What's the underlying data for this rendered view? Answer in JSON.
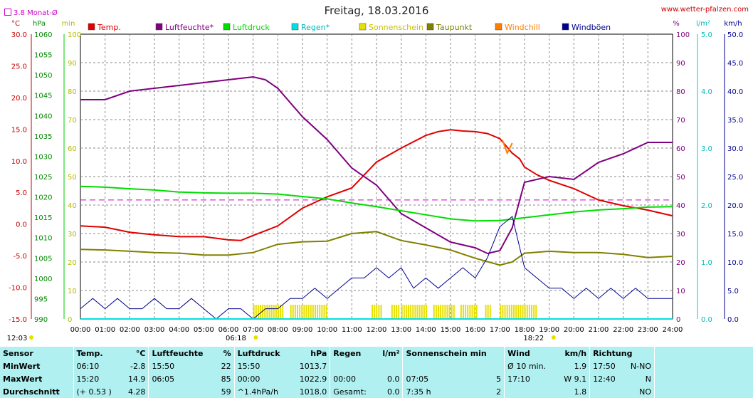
{
  "header": {
    "title": "Freitag, 18.03.2016",
    "site": "www.wetter-pfalzen.com",
    "avg_label": "3.8 Monat-Ø"
  },
  "axes": {
    "left_units": [
      "°C",
      "hPa",
      "min"
    ],
    "right_units": [
      "%",
      "l/m²",
      "km/h"
    ],
    "temp_ticks": [
      "30.0",
      "25.0",
      "20.0",
      "15.0",
      "10.0",
      "5.0",
      "0.0",
      "-5.0",
      "-10.0",
      "-15.0"
    ],
    "hpa_ticks": [
      "1060",
      "1055",
      "1050",
      "1045",
      "1040",
      "1035",
      "1030",
      "1025",
      "1020",
      "1015",
      "1010",
      "1005",
      "1000",
      "995",
      "990"
    ],
    "min_ticks": [
      "100",
      "90",
      "80",
      "70",
      "60",
      "50",
      "40",
      "30",
      "20",
      "10",
      "0"
    ],
    "pct_ticks": [
      "100",
      "90",
      "80",
      "70",
      "60",
      "50",
      "40",
      "30",
      "20",
      "10",
      "0"
    ],
    "rain_ticks": [
      "5.0",
      "4.0",
      "3.0",
      "2.0",
      "1.0",
      "0.0"
    ],
    "wind_ticks": [
      "50.0",
      "45.0",
      "40.0",
      "35.0",
      "30.0",
      "25.0",
      "20.0",
      "15.0",
      "10.0",
      "5.0",
      "0.0"
    ],
    "time_ticks": [
      "00:00",
      "01:00",
      "02:00",
      "03:00",
      "04:00",
      "05:00",
      "06:00",
      "07:00",
      "08:00",
      "09:00",
      "10:00",
      "11:00",
      "12:00",
      "13:00",
      "14:00",
      "15:00",
      "16:00",
      "17:00",
      "18:00",
      "19:00",
      "20:00",
      "21:00",
      "22:00",
      "23:00",
      "24:00"
    ],
    "sunrise": "06:18",
    "sunset": "18:22",
    "moon": "12:03"
  },
  "chart_data": {
    "type": "line",
    "title": "Freitag, 18.03.2016",
    "x_unit": "hours",
    "x_range": [
      0,
      24
    ],
    "month_avg_temp": 3.8,
    "legend": [
      {
        "name": "Temp.",
        "color": "#e00000"
      },
      {
        "name": "Luftfeuchte*",
        "color": "#800080"
      },
      {
        "name": "Luftdruck",
        "color": "#00dd00"
      },
      {
        "name": "Regen*",
        "color": "#00e0e0"
      },
      {
        "name": "Sonnenschein",
        "color": "#e8e000"
      },
      {
        "name": "Taupunkt",
        "color": "#808000"
      },
      {
        "name": "Windchill",
        "color": "#ff8000"
      },
      {
        "name": "Windböen",
        "color": "#000090"
      }
    ],
    "series": [
      {
        "name": "Temp.",
        "unit": "°C",
        "range": [
          -15,
          30
        ],
        "color": "#e00000",
        "x": [
          0,
          1,
          2,
          3,
          4,
          5,
          6,
          6.5,
          7,
          8,
          9,
          10,
          11,
          12,
          13,
          14,
          14.5,
          15,
          15.5,
          16,
          16.5,
          17,
          17.5,
          17.8,
          18,
          18.5,
          19,
          20,
          21,
          22,
          23,
          24
        ],
        "y": [
          -0.3,
          -0.5,
          -1.3,
          -1.7,
          -2.0,
          -2.0,
          -2.5,
          -2.6,
          -1.8,
          -0.3,
          2.5,
          4.3,
          5.7,
          9.8,
          12.0,
          14.0,
          14.6,
          14.9,
          14.7,
          14.6,
          14.3,
          13.5,
          11.2,
          10.3,
          9.0,
          7.8,
          6.9,
          5.6,
          3.8,
          2.9,
          2.2,
          1.3
        ]
      },
      {
        "name": "Luftfeuchte*",
        "unit": "%",
        "range": [
          0,
          100
        ],
        "color": "#800080",
        "x": [
          0,
          1,
          2,
          3,
          4,
          5,
          6,
          7,
          7.5,
          8,
          9,
          10,
          11,
          12,
          13,
          14,
          15,
          16,
          16.5,
          17,
          17.5,
          18,
          19,
          20,
          21,
          22,
          23,
          24
        ],
        "y": [
          77,
          77,
          80,
          81,
          82,
          83,
          84,
          85,
          84,
          81,
          71,
          63,
          53,
          47,
          37,
          32,
          27,
          25,
          23,
          24,
          32,
          48,
          50,
          49,
          55,
          58,
          62,
          62
        ]
      },
      {
        "name": "Luftdruck",
        "unit": "hPa",
        "range": [
          990,
          1060
        ],
        "color": "#00dd00",
        "x": [
          0,
          1,
          2,
          3,
          4,
          5,
          6,
          7,
          8,
          9,
          10,
          11,
          12,
          13,
          14,
          15,
          16,
          17,
          18,
          19,
          20,
          21,
          22,
          23,
          24
        ],
        "y": [
          1022.6,
          1022.4,
          1022.0,
          1021.7,
          1021.2,
          1021.0,
          1020.9,
          1020.9,
          1020.7,
          1020.1,
          1019.5,
          1018.5,
          1017.6,
          1016.6,
          1015.6,
          1014.6,
          1014.1,
          1014.2,
          1014.9,
          1015.6,
          1016.3,
          1016.8,
          1017.1,
          1017.5,
          1017.6
        ]
      },
      {
        "name": "Taupunkt",
        "unit": "°C",
        "range": [
          -15,
          30
        ],
        "color": "#808000",
        "x": [
          0,
          1,
          2,
          3,
          4,
          5,
          6,
          7,
          8,
          9,
          10,
          11,
          12,
          13,
          14,
          15,
          16,
          17,
          17.5,
          18,
          19,
          20,
          21,
          22,
          23,
          24
        ],
        "y": [
          -4.0,
          -4.1,
          -4.3,
          -4.5,
          -4.6,
          -4.9,
          -4.9,
          -4.5,
          -3.2,
          -2.8,
          -2.7,
          -1.5,
          -1.2,
          -2.6,
          -3.3,
          -4.1,
          -5.4,
          -6.5,
          -6.0,
          -4.6,
          -4.3,
          -4.5,
          -4.5,
          -4.8,
          -5.3,
          -5.1
        ]
      },
      {
        "name": "Windchill",
        "unit": "°C",
        "range": [
          -15,
          30
        ],
        "color": "#ff8000",
        "x": [
          17.1,
          17.3,
          17.5
        ],
        "y": [
          13.3,
          11.2,
          12.8
        ]
      },
      {
        "name": "Windböen",
        "unit": "km/h",
        "range": [
          0,
          50
        ],
        "color": "#000090",
        "x": [
          0,
          0.5,
          1,
          1.5,
          2,
          2.5,
          3,
          3.5,
          4,
          4.5,
          5,
          5.5,
          6,
          6.5,
          7,
          7.5,
          8,
          8.5,
          9,
          9.5,
          10,
          10.5,
          11,
          11.5,
          12,
          12.5,
          13,
          13.5,
          14,
          14.5,
          15,
          15.5,
          16,
          16.5,
          17,
          17.5,
          18,
          18.5,
          19,
          19.5,
          20,
          20.5,
          21,
          21.5,
          22,
          22.5,
          23,
          23.5,
          24
        ],
        "y": [
          1.8,
          3.6,
          1.8,
          3.6,
          1.8,
          1.8,
          3.6,
          1.8,
          1.8,
          3.6,
          1.8,
          0,
          1.8,
          1.8,
          0,
          1.8,
          1.8,
          3.6,
          3.6,
          5.4,
          3.6,
          5.4,
          7.2,
          7.2,
          9.0,
          7.2,
          9.0,
          5.4,
          7.2,
          5.4,
          7.2,
          9.0,
          7.2,
          10.8,
          16.2,
          18.0,
          9.0,
          7.2,
          5.4,
          5.4,
          3.6,
          5.4,
          3.6,
          5.4,
          3.6,
          5.4,
          3.6,
          3.6,
          3.6
        ]
      },
      {
        "name": "Regen*",
        "unit": "l/m²",
        "range": [
          0,
          5
        ],
        "color": "#00e0e0",
        "x": [
          0,
          24
        ],
        "y": [
          0,
          0
        ]
      }
    ],
    "sunshine_bars": [
      [
        7.0,
        8.2
      ],
      [
        8.5,
        10.0
      ],
      [
        11.8,
        12.2
      ],
      [
        12.6,
        12.9
      ],
      [
        13.0,
        14.0
      ],
      [
        14.3,
        15.2
      ],
      [
        15.4,
        16.1
      ],
      [
        16.4,
        16.6
      ],
      [
        17.0,
        18.5
      ]
    ]
  },
  "stats": {
    "headers": [
      "Sensor",
      "Temp.",
      "°C",
      "Luftfeuchte",
      "%",
      "Luftdruck",
      "hPa",
      "Regen",
      "l/m²",
      "Sonnenschein min",
      "Wind",
      "km/h",
      "Richtung"
    ],
    "rows": [
      {
        "label": "MinWert",
        "cells": [
          "06:10",
          "-2.8",
          "15:50",
          "22",
          "15:50",
          "1013.7",
          "",
          "",
          "",
          "",
          "Ø 10 min.",
          "1.9",
          "17:50",
          "N-NO"
        ]
      },
      {
        "label": "MaxWert",
        "cells": [
          "15:20",
          "14.9",
          "06:05",
          "85",
          "00:00",
          "1022.9",
          "00:00",
          "0.0",
          "07:05",
          "5",
          "17:10",
          "W 9.1",
          "12:40",
          "N"
        ]
      },
      {
        "label": "Durchschnitt",
        "cells": [
          "(+ 0.53 )",
          "4.28",
          "",
          "59",
          "^1.4hPa/h",
          "1018.0",
          "Gesamt:",
          "0.0",
          "7:35 h",
          "2",
          "",
          "1.8",
          "",
          "NO"
        ]
      }
    ]
  }
}
